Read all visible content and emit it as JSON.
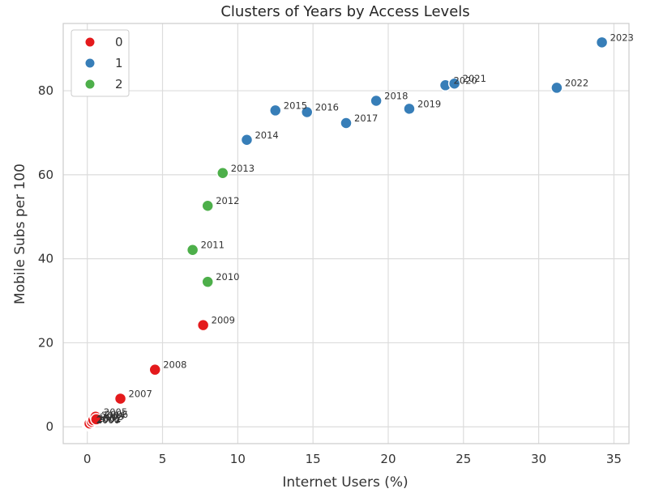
{
  "chart_data": {
    "type": "scatter",
    "title": "Clusters of Years by Access Levels",
    "xlabel": "Internet Users (%)",
    "ylabel": "Mobile Subs per 100",
    "xlim": [
      -1.6,
      36.0
    ],
    "ylim": [
      -4.0,
      96.0
    ],
    "xticks": [
      0,
      5,
      10,
      15,
      20,
      25,
      30,
      35
    ],
    "yticks": [
      0,
      20,
      40,
      60,
      80
    ],
    "grid": true,
    "legend": {
      "placement": "top-left",
      "entries": [
        {
          "label": "0",
          "color": "#e41a1c"
        },
        {
          "label": "1",
          "color": "#377eb8"
        },
        {
          "label": "2",
          "color": "#4daf4a"
        }
      ]
    },
    "points": [
      {
        "label": "2000",
        "x": 0.05,
        "y": 0.4,
        "cluster": 0
      },
      {
        "label": "2001",
        "x": 0.1,
        "y": 0.6,
        "cluster": 0
      },
      {
        "label": "2002",
        "x": 0.15,
        "y": 0.8,
        "cluster": 0
      },
      {
        "label": "2003",
        "x": 0.3,
        "y": 1.2,
        "cluster": 0
      },
      {
        "label": "2004",
        "x": 0.4,
        "y": 1.6,
        "cluster": 0
      },
      {
        "label": "2005",
        "x": 0.55,
        "y": 2.4,
        "cluster": 0
      },
      {
        "label": "2006",
        "x": 0.6,
        "y": 1.8,
        "cluster": 0
      },
      {
        "label": "2007",
        "x": 2.2,
        "y": 6.7,
        "cluster": 0
      },
      {
        "label": "2008",
        "x": 4.5,
        "y": 13.6,
        "cluster": 0
      },
      {
        "label": "2009",
        "x": 7.7,
        "y": 24.2,
        "cluster": 0
      },
      {
        "label": "2010",
        "x": 8.0,
        "y": 34.5,
        "cluster": 2
      },
      {
        "label": "2011",
        "x": 7.0,
        "y": 42.1,
        "cluster": 2
      },
      {
        "label": "2012",
        "x": 8.0,
        "y": 52.6,
        "cluster": 2
      },
      {
        "label": "2013",
        "x": 9.0,
        "y": 60.4,
        "cluster": 2
      },
      {
        "label": "2014",
        "x": 10.6,
        "y": 68.3,
        "cluster": 1
      },
      {
        "label": "2015",
        "x": 12.5,
        "y": 75.3,
        "cluster": 1
      },
      {
        "label": "2016",
        "x": 14.6,
        "y": 74.9,
        "cluster": 1
      },
      {
        "label": "2017",
        "x": 17.2,
        "y": 72.3,
        "cluster": 1
      },
      {
        "label": "2018",
        "x": 19.2,
        "y": 77.6,
        "cluster": 1
      },
      {
        "label": "2019",
        "x": 21.4,
        "y": 75.7,
        "cluster": 1
      },
      {
        "label": "2020",
        "x": 23.8,
        "y": 81.3,
        "cluster": 1
      },
      {
        "label": "2021",
        "x": 24.4,
        "y": 81.7,
        "cluster": 1
      },
      {
        "label": "2022",
        "x": 31.2,
        "y": 80.7,
        "cluster": 1
      },
      {
        "label": "2023",
        "x": 34.2,
        "y": 91.5,
        "cluster": 1
      }
    ]
  }
}
